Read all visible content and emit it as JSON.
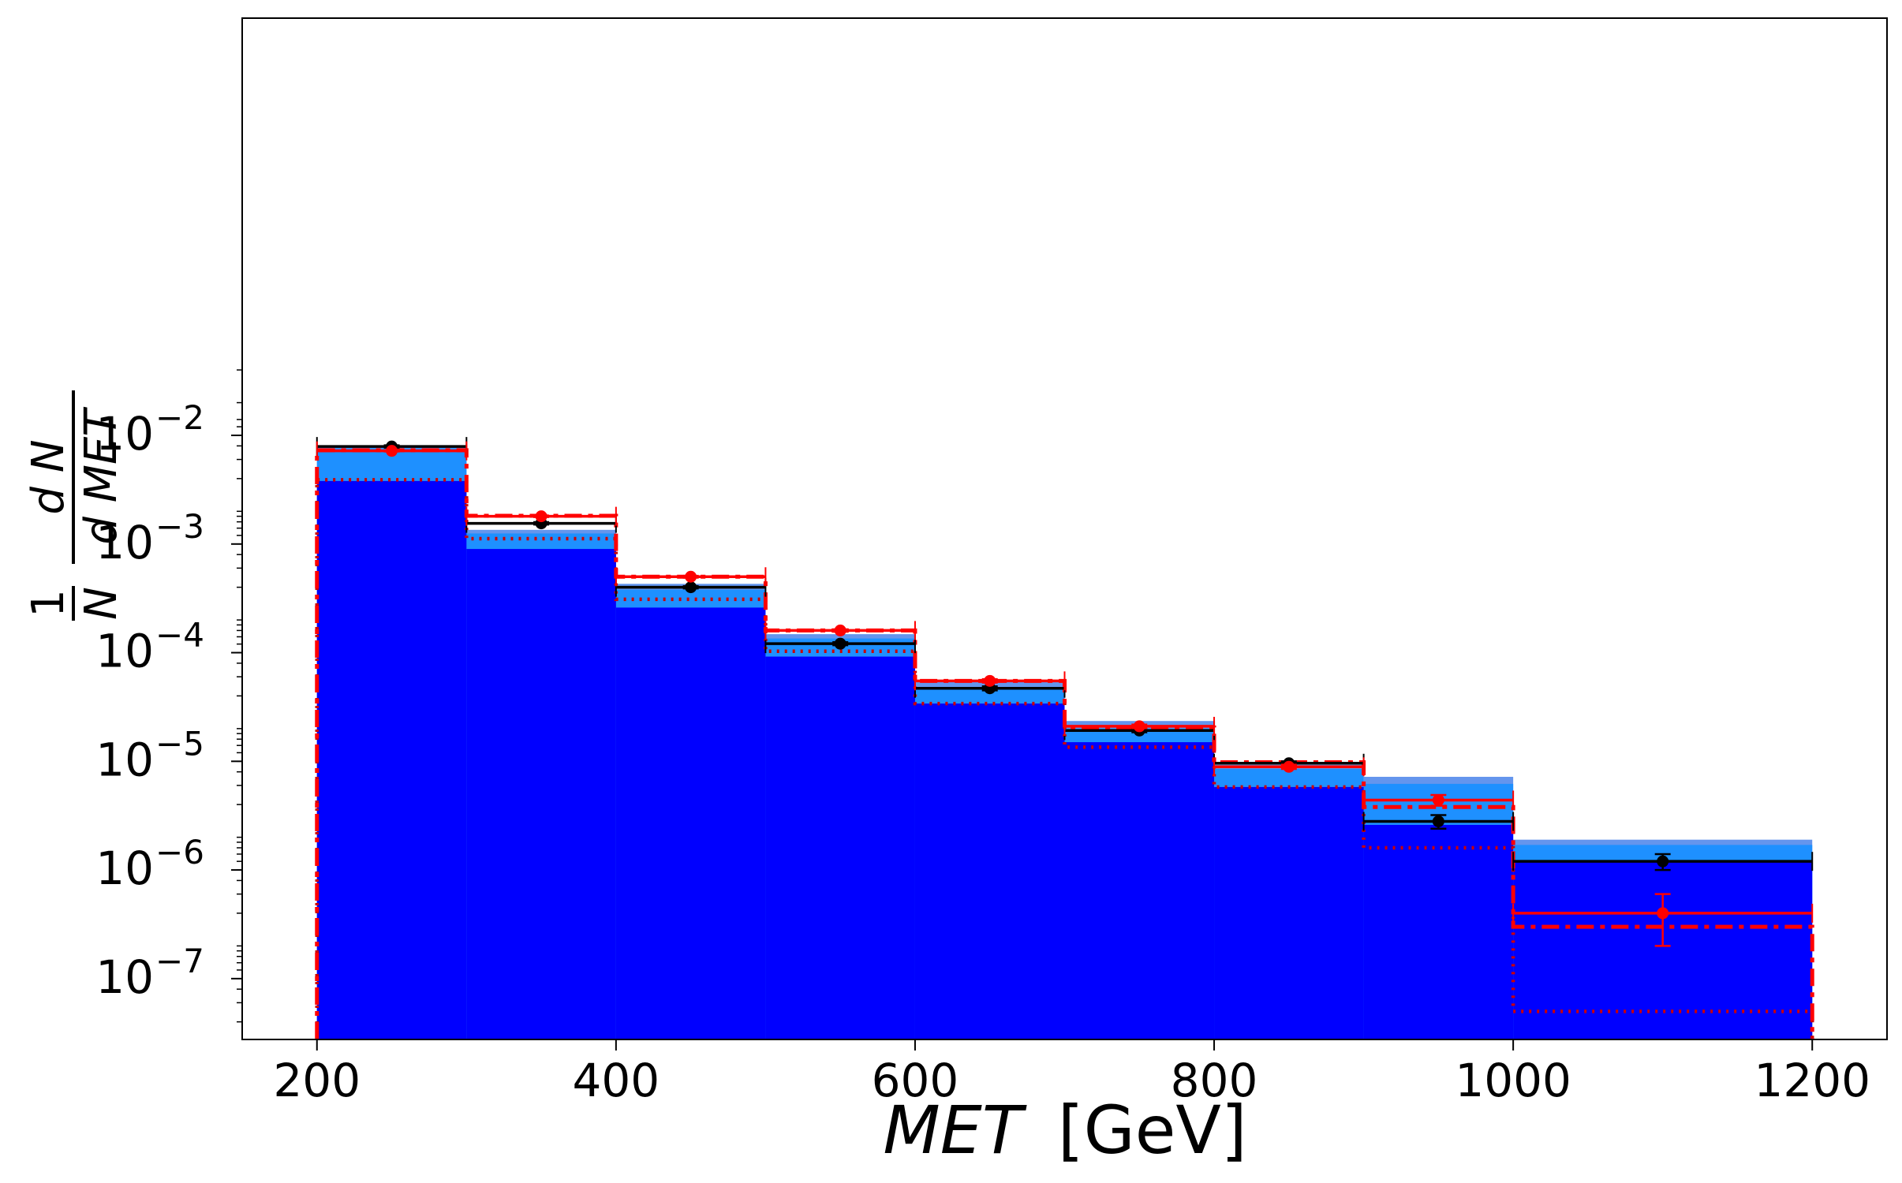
{
  "chart_data": {
    "type": "histogram-step-log",
    "xlabel_var": "MET",
    "xlabel_unit": "[GeV]",
    "ylabel_prefix": "1",
    "ylabel_N": "N",
    "ylabel_dN": "d N",
    "ylabel_dMET": "d MET",
    "yscale": "log",
    "xlim": [
      150,
      1250
    ],
    "ylim_exp": [
      -7.56,
      1.84
    ],
    "xticks": [
      200,
      400,
      600,
      800,
      1000,
      1200
    ],
    "xtick_labels": [
      "200",
      "400",
      "600",
      "800",
      "1000",
      "1200"
    ],
    "ytick_mantissa": "10",
    "ytick_exps": [
      -2,
      -3,
      -4,
      -5,
      -6,
      -7
    ],
    "ytick_exp_labels": [
      "−2",
      "−3",
      "−4",
      "−5",
      "−6",
      "−7"
    ],
    "yminor_exps": [
      -2.699,
      -2.3979,
      -2.2218,
      -2.0969,
      -1.9208,
      -1.8539,
      -3.699,
      -3.3979,
      -3.2218,
      -3.0969,
      -3.0,
      -2.9208,
      -2.8539,
      -2.7959,
      -2.7447,
      -4.699,
      -4.3979,
      -4.2218,
      -4.0969,
      -4.0,
      -3.9208,
      -3.8539,
      -3.7959,
      -3.7447,
      -5.699,
      -5.3979,
      -5.2218,
      -5.0969,
      -5.0,
      -4.9208,
      -4.8539,
      -4.7959,
      -4.7447,
      -6.699,
      -6.3979,
      -6.2218,
      -6.0969,
      -6.0,
      -5.9208,
      -5.8539,
      -5.7959,
      -5.7447,
      -7.699,
      -7.3979,
      -7.2218,
      -7.0969,
      -7.0,
      -6.9208,
      -6.8539,
      -6.7959,
      -6.7447,
      -1.699,
      -1.3979
    ],
    "bin_edges": [
      200,
      300,
      400,
      500,
      600,
      700,
      800,
      900,
      1000,
      1200
    ],
    "colors": {
      "band_outer": "#6495ed",
      "band_mid": "#1e90ff",
      "fill": "#0000ff",
      "black": "#000000",
      "red": "#ff0000",
      "red_dotted": "#cc0000"
    },
    "series": [
      {
        "style": "blue-fill",
        "values": [
          0.0038,
          0.0009,
          0.00026,
          9.2e-05,
          3.4e-05,
          1.5e-05,
          5.8e-06,
          2.6e-06,
          1.2e-06
        ]
      },
      {
        "style": "band-mid",
        "values": [
          0.0076,
          0.00125,
          0.00038,
          0.000135,
          4.8e-05,
          2e-05,
          8.5e-06,
          6.2e-06,
          1.7e-06
        ]
      },
      {
        "style": "band-outer",
        "values": [
          0.0079,
          0.00135,
          0.00043,
          0.000148,
          5.5e-05,
          2.35e-05,
          9.3e-06,
          7.2e-06,
          1.9e-06
        ]
      },
      {
        "style": "black-solid-points",
        "values": [
          0.0079,
          0.00155,
          0.0004,
          0.000121,
          4.7e-05,
          1.92e-05,
          9.6e-06,
          2.8e-06,
          1.2e-06
        ],
        "err_low": [
          0.0077,
          0.00151,
          0.00039,
          0.000117,
          4.5e-05,
          1.85e-05,
          9.2e-06,
          2.4e-06,
          1e-06
        ],
        "err_high": [
          0.0081,
          0.00159,
          0.00041,
          0.000125,
          4.9e-05,
          1.99e-05,
          1e-05,
          3.2e-06,
          1.4e-06
        ]
      },
      {
        "style": "red-solid-points",
        "values": [
          0.0072,
          0.0018,
          0.0005,
          0.00016,
          5.5e-05,
          2.1e-05,
          8.9e-06,
          4.4e-06,
          4e-07
        ],
        "err_low": [
          0.0071,
          0.00177,
          0.00049,
          0.000156,
          5.3e-05,
          2.02e-05,
          8.5e-06,
          3.9e-06,
          2e-07
        ],
        "err_high": [
          0.0073,
          0.00183,
          0.00051,
          0.000164,
          5.7e-05,
          2.18e-05,
          9.3e-06,
          4.9e-06,
          6e-07
        ]
      },
      {
        "style": "red-dashdot",
        "values": [
          0.0073,
          0.00182,
          0.0005,
          0.00016,
          5.5e-05,
          2.05e-05,
          9.8e-06,
          3.8e-06,
          3e-07
        ]
      },
      {
        "style": "red-dotted",
        "values": [
          0.0039,
          0.00112,
          0.00031,
          0.000103,
          3.4e-05,
          1.35e-05,
          5.8e-06,
          1.6e-06,
          5e-08
        ]
      }
    ]
  }
}
